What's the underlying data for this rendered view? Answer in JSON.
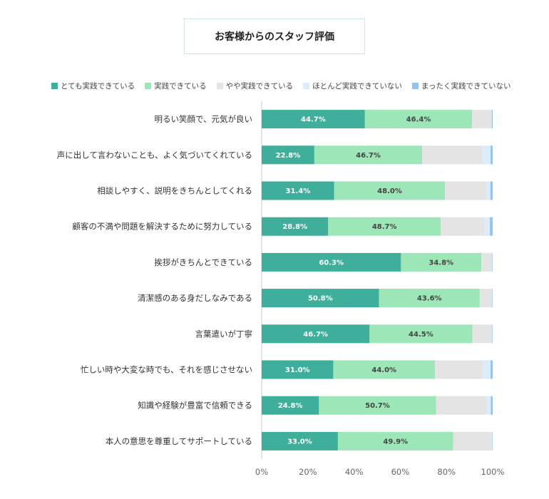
{
  "chart_data": {
    "type": "bar",
    "orientation": "horizontal",
    "stacked": true,
    "title": "お客様からのスタッフ評価",
    "legend_position": "top",
    "grid": false,
    "xlim": [
      0,
      100
    ],
    "x_ticks": [
      "0%",
      "20%",
      "40%",
      "60%",
      "80%",
      "100%"
    ],
    "categories": [
      "明るい笑顔で、元気が良い",
      "声に出して言わないことも、よく気づいてくれている",
      "相談しやすく、説明をきちんとしてくれる",
      "顧客の不満や問題を解決するために努力している",
      "挨拶がきちんとできている",
      "清潔感のある身だしなみである",
      "言葉遣いが丁寧",
      "忙しい時や大変な時でも、それを感じさせない",
      "知識や経験が豊富で信頼できる",
      "本人の意思を尊重してサポートしている"
    ],
    "series": [
      {
        "name": "とても実践できている",
        "color": "#3fae9b",
        "label_color": "#ffffff",
        "values": [
          44.7,
          22.8,
          31.4,
          28.8,
          60.3,
          50.8,
          46.7,
          31.0,
          24.8,
          33.0
        ],
        "labels": [
          "44.7%",
          "22.8%",
          "31.4%",
          "28.8%",
          "60.3%",
          "50.8%",
          "46.7%",
          "31.0%",
          "24.8%",
          "33.0%"
        ]
      },
      {
        "name": "実践できている",
        "color": "#9de6b7",
        "label_color": "#444444",
        "values": [
          46.4,
          46.7,
          48.0,
          48.7,
          34.8,
          43.6,
          44.5,
          44.0,
          50.7,
          49.9
        ],
        "labels": [
          "46.4%",
          "46.7%",
          "48.0%",
          "48.7%",
          "34.8%",
          "43.6%",
          "44.5%",
          "44.0%",
          "50.7%",
          "49.9%"
        ]
      },
      {
        "name": "やや実践できている",
        "color": "#e4e4e4",
        "values": [
          8.3,
          26.0,
          17.8,
          18.9,
          4.6,
          5.3,
          8.5,
          20.7,
          21.9,
          16.7
        ]
      },
      {
        "name": "ほとんど実践できていない",
        "color": "#dcecf8",
        "values": [
          0.2,
          3.6,
          1.8,
          2.4,
          0.1,
          0.1,
          0.1,
          3.4,
          1.8,
          0.2
        ]
      },
      {
        "name": "まったく実践できていない",
        "color": "#98c2e6",
        "values": [
          0.4,
          0.9,
          1.0,
          1.2,
          0.2,
          0.2,
          0.2,
          0.9,
          0.8,
          0.2
        ]
      }
    ]
  }
}
